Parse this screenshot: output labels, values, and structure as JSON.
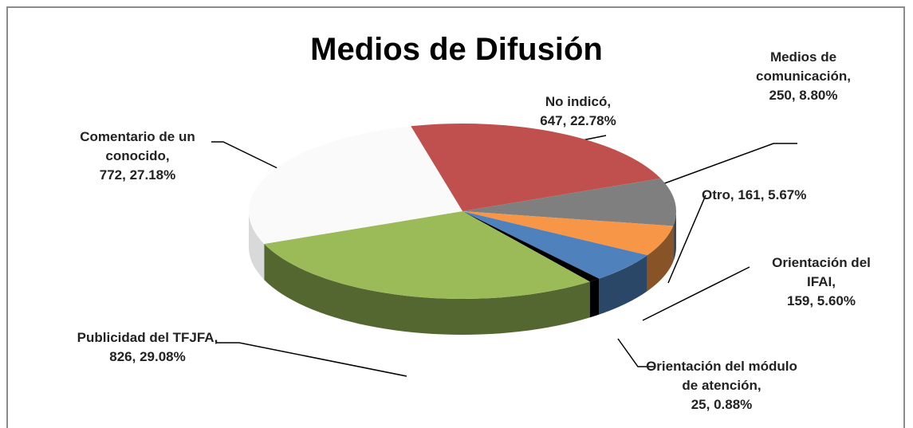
{
  "chart_data": {
    "type": "pie3d",
    "title": "Medios de Difusión",
    "categories": [
      "No indicó,",
      "Medios de comunicación,",
      "Otro,",
      "Orientación del IFAI,",
      "Orientación del módulo de atención,",
      "Publicidad del TFJFA,",
      "Comentario de un conocido,"
    ],
    "values": [
      647,
      250,
      161,
      159,
      25,
      826,
      772
    ],
    "value_labels": [
      "647, 22.78%",
      "250, 8.80%",
      "161, 5.67%",
      "159, 5.60%",
      "25, 0.88%",
      "826, 29.08%",
      "772, 27.18%"
    ],
    "colors": [
      "#c0504d",
      "#7f7f7f",
      "#f79646",
      "#4f81bd",
      "#000000",
      "#9bbb59",
      "#fafafa"
    ]
  }
}
